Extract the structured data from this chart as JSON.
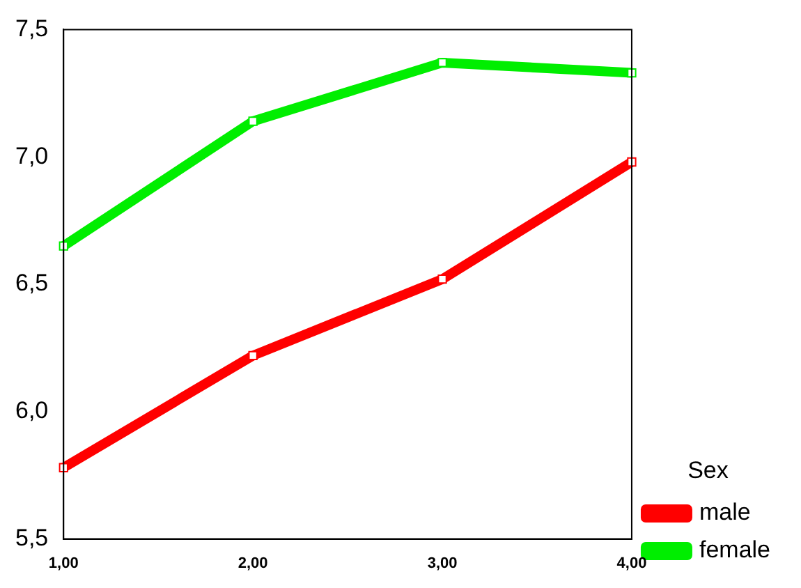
{
  "chart_data": {
    "type": "line",
    "x": [
      1,
      2,
      3,
      4
    ],
    "xlim": [
      1,
      4
    ],
    "xticks": [
      {
        "value": 1,
        "label": "1,00"
      },
      {
        "value": 2,
        "label": "2,00"
      },
      {
        "value": 3,
        "label": "3,00"
      },
      {
        "value": 4,
        "label": "4,00"
      }
    ],
    "ylim": [
      5.5,
      7.5
    ],
    "yticks": [
      {
        "value": 5.5,
        "label": "5,5"
      },
      {
        "value": 6,
        "label": "6,0"
      },
      {
        "value": 6.5,
        "label": "6,5"
      },
      {
        "value": 7,
        "label": "7,0"
      },
      {
        "value": 7.5,
        "label": "7,5"
      }
    ],
    "legend_title": "Sex",
    "legend": "right",
    "grid": false,
    "marker": "square",
    "line_style": "solid",
    "series": [
      {
        "name": "male",
        "color": "#ff0000",
        "values": [
          5.78,
          6.22,
          6.52,
          6.98
        ]
      },
      {
        "name": "female",
        "color": "#00ee00",
        "values": [
          6.65,
          7.14,
          7.37,
          7.33
        ]
      }
    ]
  }
}
